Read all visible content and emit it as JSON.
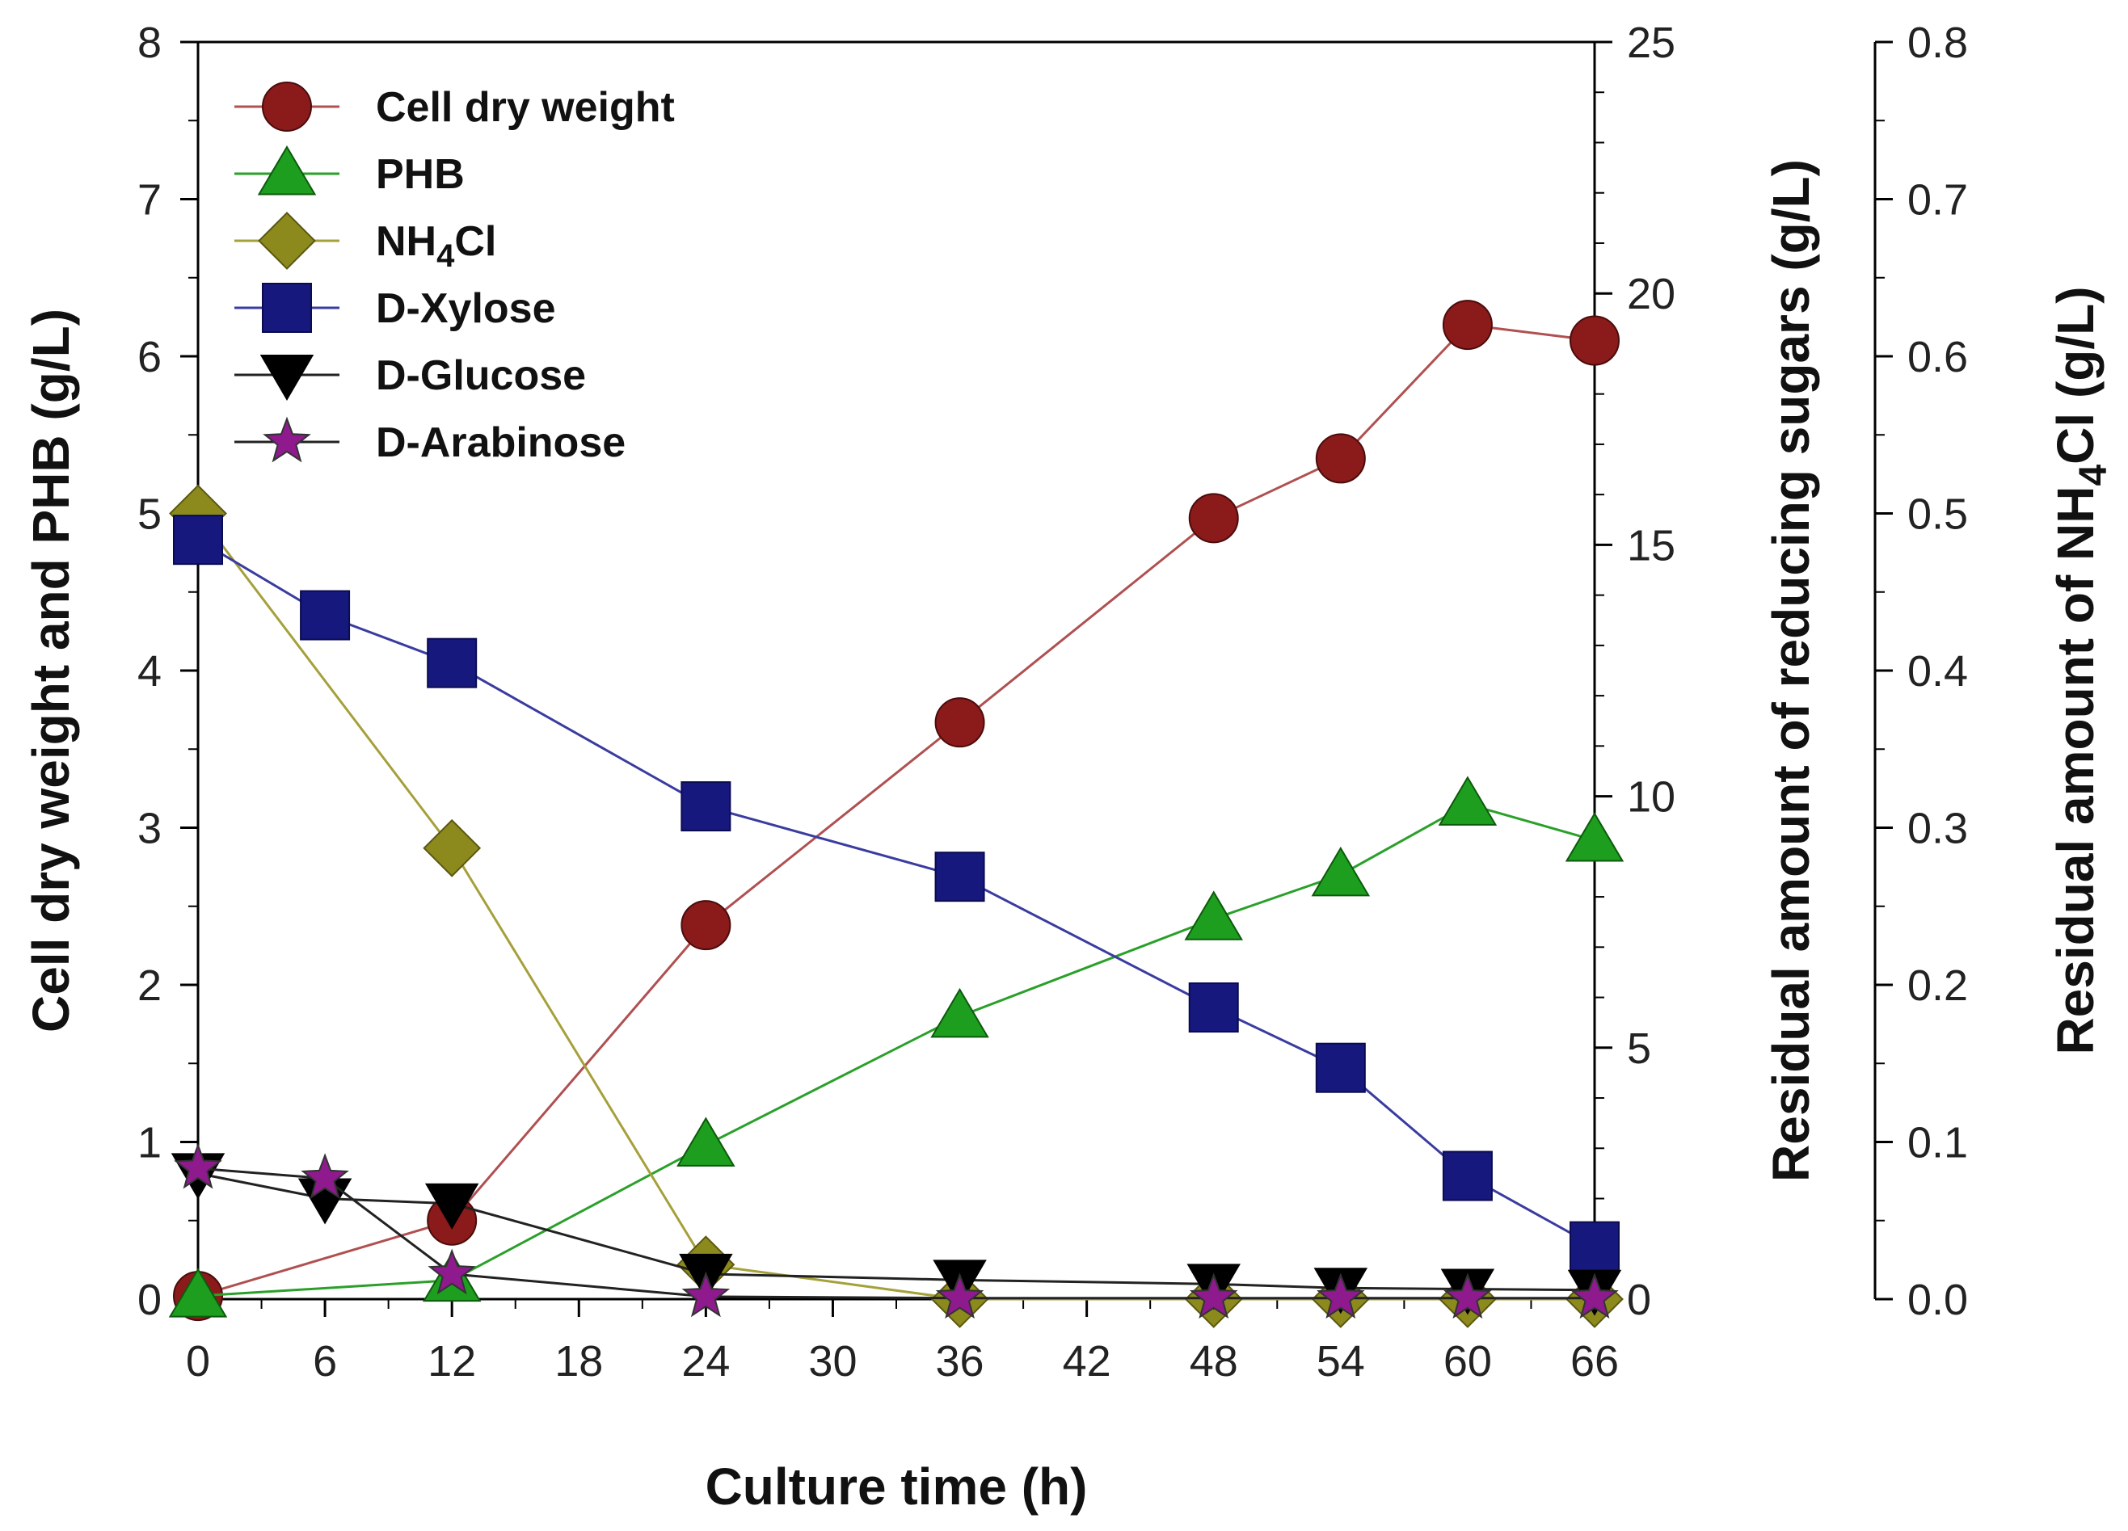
{
  "chart_data": {
    "type": "line",
    "x": [
      0,
      6,
      12,
      24,
      36,
      48,
      54,
      60,
      66
    ],
    "x_ticks": [
      0,
      6,
      12,
      18,
      24,
      30,
      36,
      42,
      48,
      54,
      60,
      66
    ],
    "xlabel": "Culture time (h)",
    "xlim": [
      0,
      66
    ],
    "axes": {
      "left": {
        "label": "Cell dry weight and PHB (g/L)",
        "ylim": [
          0,
          8
        ],
        "ticks": [
          0,
          1,
          2,
          3,
          4,
          5,
          6,
          7,
          8
        ],
        "tick_labels": [
          "0",
          "1",
          "2",
          "3",
          "4",
          "5",
          "6",
          "7",
          "8"
        ]
      },
      "right1": {
        "label": "Residual amount of reducing sugars (g/L)",
        "ylim": [
          0,
          25
        ],
        "ticks": [
          0,
          5,
          10,
          15,
          20,
          25
        ],
        "tick_labels": [
          "0",
          "5",
          "10",
          "15",
          "20",
          "25"
        ]
      },
      "right2": {
        "label_parts": [
          "Residual amount of NH",
          "4",
          "Cl (g/L)"
        ],
        "ylim": [
          0,
          0.8
        ],
        "ticks": [
          0,
          0.1,
          0.2,
          0.3,
          0.4,
          0.5,
          0.6,
          0.7,
          0.8
        ],
        "tick_labels": [
          "0.0",
          "0.1",
          "0.2",
          "0.3",
          "0.4",
          "0.5",
          "0.6",
          "0.7",
          "0.8"
        ]
      }
    },
    "series": [
      {
        "name": "Cell dry weight",
        "axis": "left",
        "marker": "circle",
        "color": "#8b1a1a",
        "line": "#b05050",
        "x": [
          0,
          12,
          24,
          36,
          48,
          54,
          60,
          66
        ],
        "values": [
          0.02,
          0.5,
          2.38,
          3.67,
          4.97,
          5.35,
          6.2,
          6.1
        ]
      },
      {
        "name": "PHB",
        "axis": "left",
        "marker": "triangle-up",
        "color": "#1e9e1e",
        "line": "#2aa02a",
        "x": [
          0,
          12,
          24,
          36,
          48,
          54,
          60,
          66
        ],
        "values": [
          0.02,
          0.12,
          0.98,
          1.8,
          2.42,
          2.7,
          3.15,
          2.92
        ]
      },
      {
        "name": "NH4Cl",
        "label_parts": [
          "NH",
          "4",
          "Cl"
        ],
        "axis": "right2",
        "marker": "diamond",
        "color": "#8c8a1c",
        "line": "#a5a03a",
        "x": [
          0,
          12,
          24,
          36,
          48,
          54,
          60,
          66
        ],
        "values": [
          0.5,
          0.287,
          0.022,
          0.0,
          0.0,
          0.0,
          0.0,
          0.0
        ]
      },
      {
        "name": "D-Xylose",
        "axis": "right1",
        "marker": "square",
        "color": "#16187e",
        "line": "#3a3ca0",
        "x": [
          0,
          6,
          12,
          24,
          36,
          48,
          54,
          60,
          66
        ],
        "values": [
          15.1,
          13.6,
          12.65,
          9.8,
          8.4,
          5.8,
          4.6,
          2.45,
          1.05
        ]
      },
      {
        "name": "D-Glucose",
        "axis": "right1",
        "marker": "triangle-down",
        "color": "#000000",
        "line": "#222222",
        "x": [
          0,
          6,
          12,
          24,
          36,
          48,
          54,
          60,
          66
        ],
        "values": [
          2.5,
          2.0,
          1.9,
          0.5,
          0.38,
          0.3,
          0.22,
          0.2,
          0.18
        ]
      },
      {
        "name": "D-Arabinose",
        "axis": "right1",
        "marker": "star",
        "color": "#8e1a8e",
        "line": "#222222",
        "x": [
          0,
          6,
          12,
          24,
          36,
          48,
          54,
          60,
          66
        ],
        "values": [
          2.6,
          2.4,
          0.5,
          0.05,
          0.02,
          0.02,
          0.02,
          0.02,
          0.02
        ]
      }
    ],
    "legend_position": "top-left",
    "grid": false
  }
}
